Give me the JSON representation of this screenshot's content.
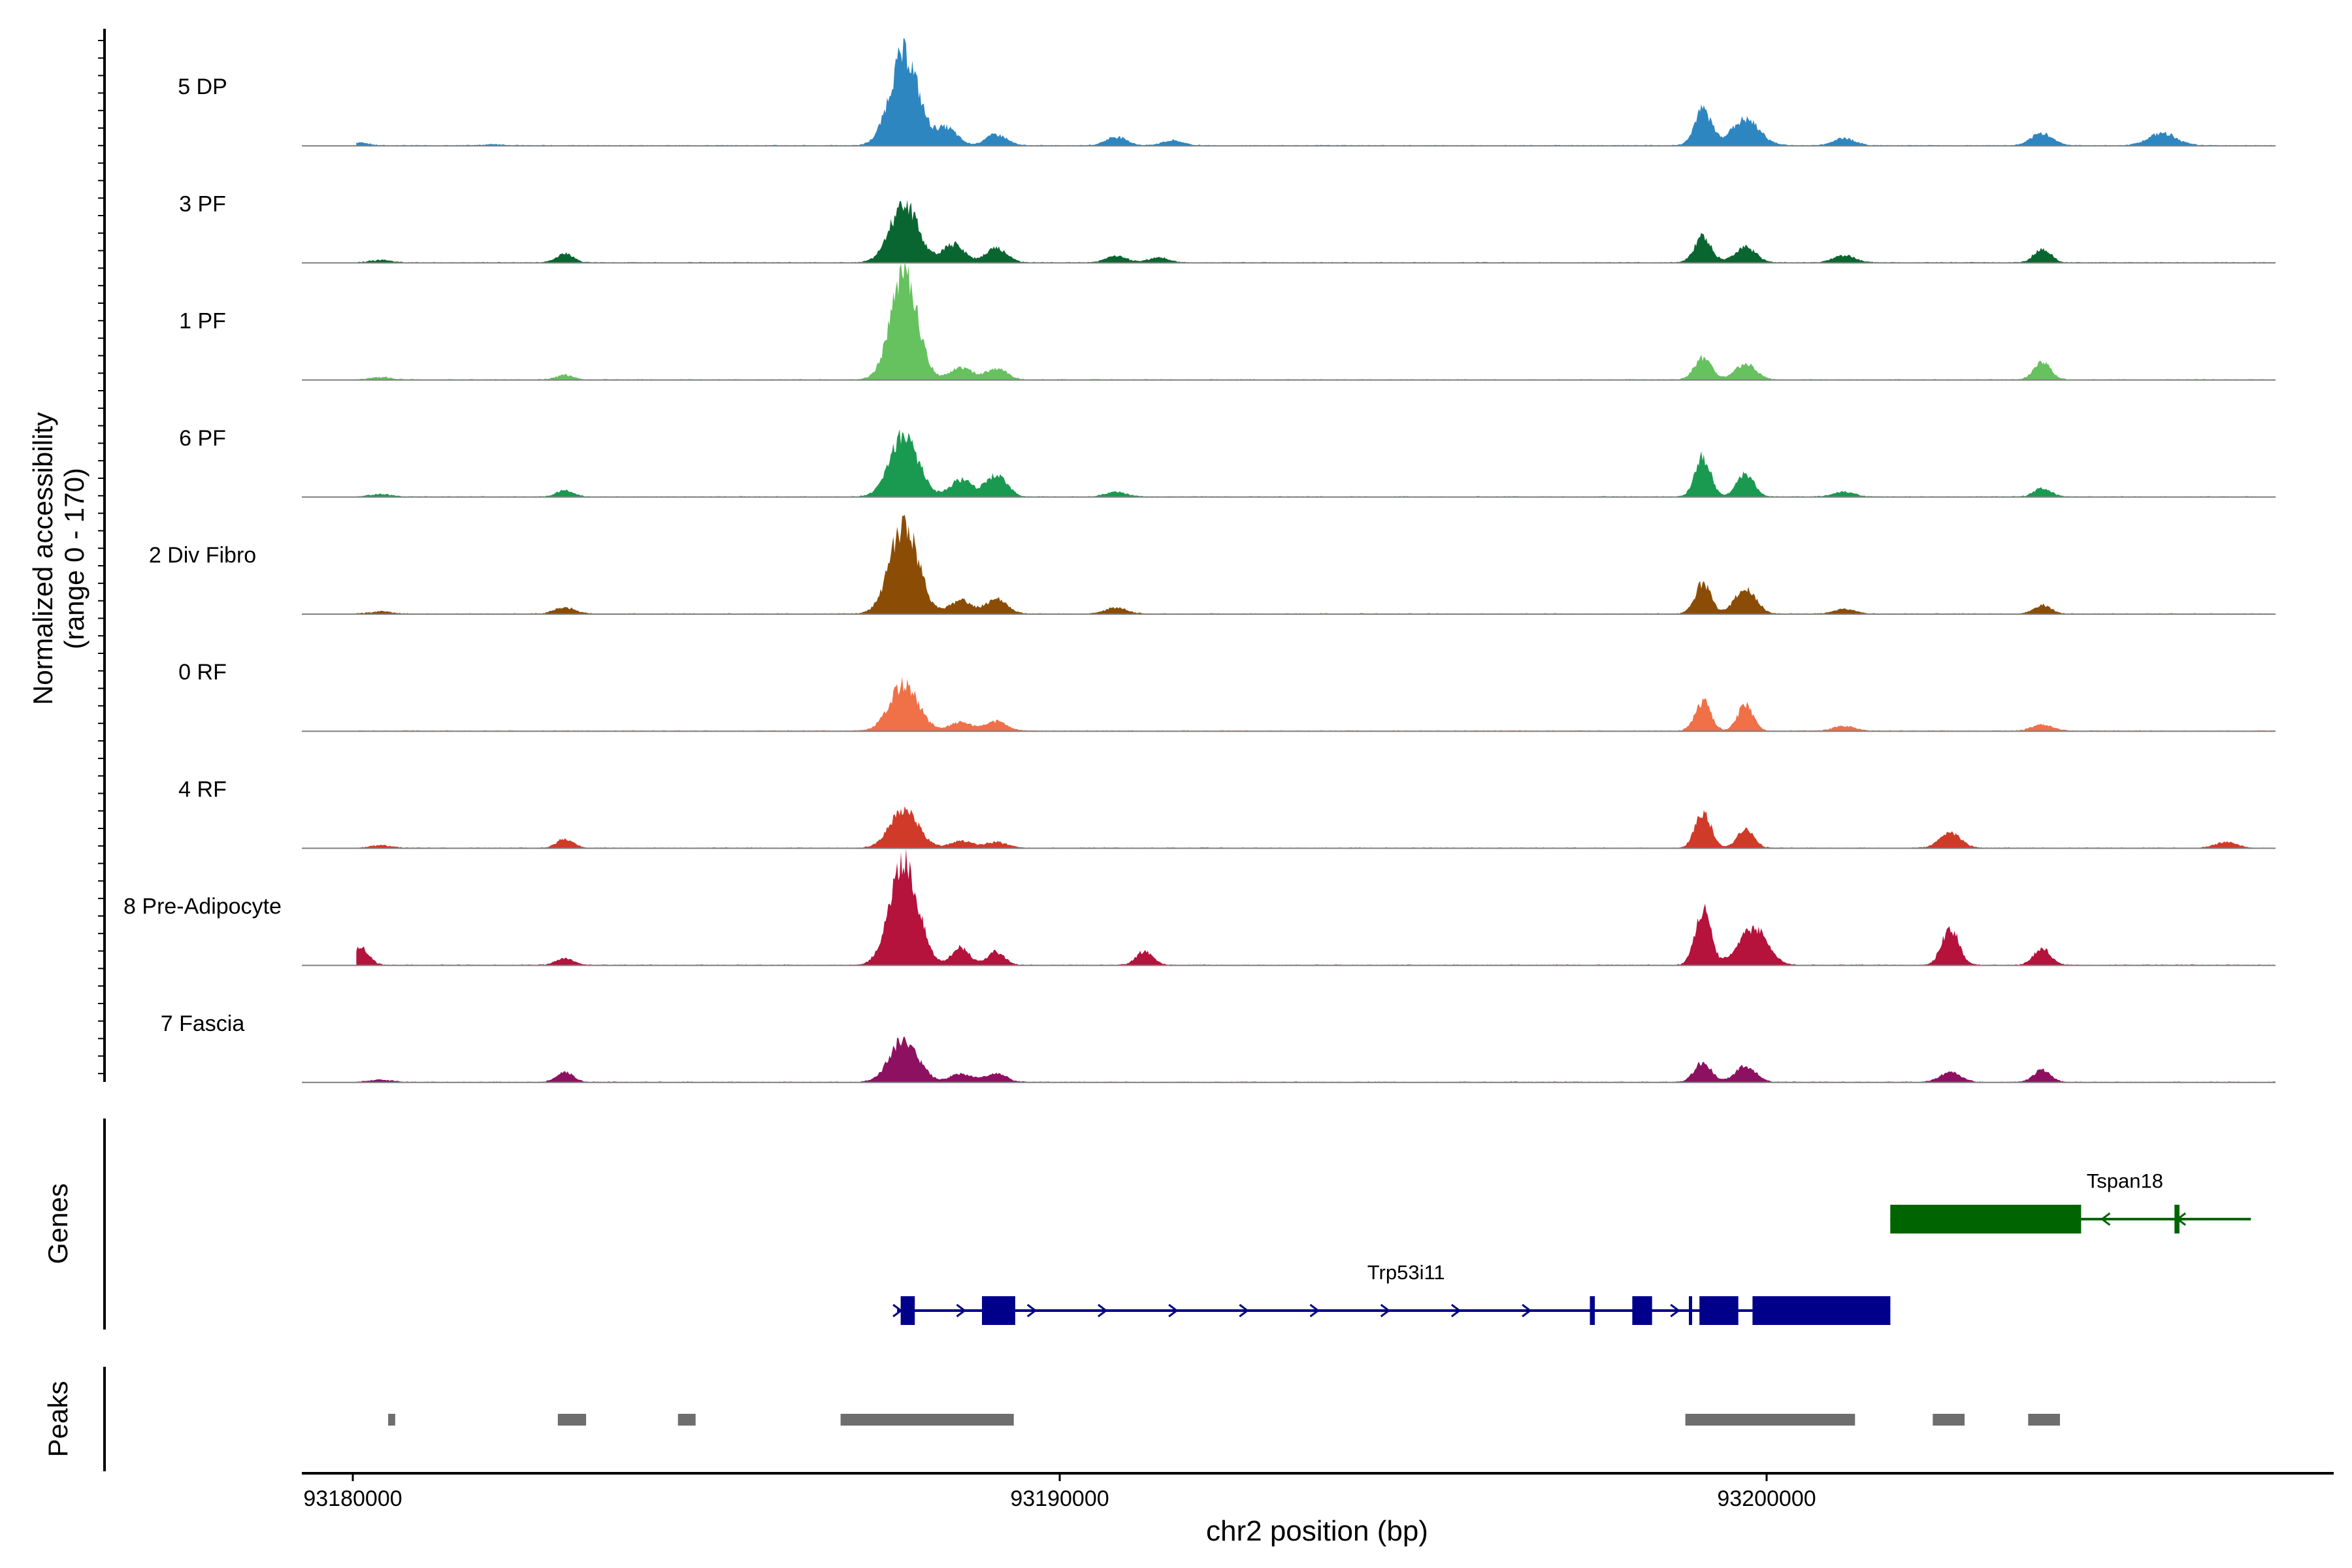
{
  "chart_data": {
    "type": "coverage",
    "ylabel": "Normalized accessibility",
    "ylabel_range": "(range 0 - 170)",
    "xlabel": "chr2 position (bp)",
    "xlim": [
      93178700,
      93208000
    ],
    "ylim": [
      0,
      170
    ],
    "x_ticks": [
      93180000,
      93190000,
      93200000
    ],
    "x_tick_labels": [
      "93180000",
      "93190000",
      "93200000"
    ],
    "tracks": [
      {
        "name": "5 DP",
        "color": "#2e86c1",
        "peaks": [
          [
            93180100,
            5,
            120
          ],
          [
            93182000,
            2,
            150
          ],
          [
            93187800,
            150,
            200
          ],
          [
            93188400,
            28,
            150
          ],
          [
            93189100,
            18,
            150
          ],
          [
            93190800,
            14,
            150
          ],
          [
            93191600,
            8,
            150
          ],
          [
            93199100,
            58,
            120
          ],
          [
            93199700,
            42,
            200
          ],
          [
            93201100,
            12,
            150
          ],
          [
            93203900,
            20,
            150
          ],
          [
            93205600,
            20,
            200
          ]
        ]
      },
      {
        "name": "3 PF",
        "color": "#0a6630",
        "peaks": [
          [
            93180400,
            4,
            150
          ],
          [
            93183000,
            14,
            120
          ],
          [
            93187800,
            95,
            200
          ],
          [
            93188500,
            30,
            150
          ],
          [
            93189100,
            24,
            150
          ],
          [
            93190800,
            10,
            150
          ],
          [
            93191400,
            8,
            150
          ],
          [
            93199100,
            42,
            120
          ],
          [
            93199700,
            25,
            150
          ],
          [
            93201100,
            12,
            150
          ],
          [
            93203900,
            22,
            120
          ]
        ]
      },
      {
        "name": "1 PF",
        "color": "#66c15f",
        "peaks": [
          [
            93180400,
            4,
            150
          ],
          [
            93183000,
            8,
            120
          ],
          [
            93187800,
            170,
            190
          ],
          [
            93188600,
            20,
            150
          ],
          [
            93189100,
            18,
            150
          ],
          [
            93199100,
            35,
            120
          ],
          [
            93199700,
            25,
            150
          ],
          [
            93203900,
            28,
            120
          ]
        ]
      },
      {
        "name": "6 PF",
        "color": "#1a9a50",
        "peaks": [
          [
            93180400,
            4,
            150
          ],
          [
            93183000,
            10,
            120
          ],
          [
            93187800,
            100,
            200
          ],
          [
            93188600,
            28,
            150
          ],
          [
            93189100,
            35,
            150
          ],
          [
            93190800,
            8,
            150
          ],
          [
            93199100,
            64,
            110
          ],
          [
            93199700,
            38,
            120
          ],
          [
            93201100,
            8,
            150
          ],
          [
            93203900,
            14,
            120
          ]
        ]
      },
      {
        "name": "2 Div Fibro",
        "color": "#8b4d06",
        "peaks": [
          [
            93180400,
            4,
            150
          ],
          [
            93183000,
            10,
            150
          ],
          [
            93187800,
            145,
            200
          ],
          [
            93188600,
            22,
            150
          ],
          [
            93189100,
            24,
            150
          ],
          [
            93190800,
            10,
            150
          ],
          [
            93199100,
            50,
            110
          ],
          [
            93199700,
            40,
            150
          ],
          [
            93201100,
            8,
            150
          ],
          [
            93203900,
            14,
            120
          ]
        ]
      },
      {
        "name": "0 RF",
        "color": "#f07048",
        "peaks": [
          [
            93187800,
            76,
            200
          ],
          [
            93188600,
            14,
            150
          ],
          [
            93189100,
            16,
            150
          ],
          [
            93199100,
            48,
            110
          ],
          [
            93199700,
            42,
            110
          ],
          [
            93201100,
            8,
            150
          ],
          [
            93203900,
            10,
            150
          ]
        ]
      },
      {
        "name": "4 RF",
        "color": "#d03a28",
        "peaks": [
          [
            93180400,
            4,
            150
          ],
          [
            93183000,
            14,
            120
          ],
          [
            93187800,
            62,
            200
          ],
          [
            93188600,
            12,
            150
          ],
          [
            93189100,
            10,
            150
          ],
          [
            93199100,
            60,
            110
          ],
          [
            93199700,
            30,
            120
          ],
          [
            93202600,
            24,
            150
          ],
          [
            93206500,
            10,
            150
          ]
        ]
      },
      {
        "name": "8 Pre-Adipocyte",
        "color": "#b5123c",
        "peaks": [
          [
            93180100,
            30,
            120
          ],
          [
            93183000,
            12,
            120
          ],
          [
            93187800,
            165,
            200
          ],
          [
            93188600,
            30,
            120
          ],
          [
            93189100,
            22,
            120
          ],
          [
            93191200,
            22,
            120
          ],
          [
            93199100,
            90,
            110
          ],
          [
            93199800,
            62,
            200
          ],
          [
            93202600,
            60,
            120
          ],
          [
            93203900,
            28,
            120
          ]
        ]
      },
      {
        "name": "7 Fascia",
        "color": "#8e1060",
        "peaks": [
          [
            93180400,
            4,
            150
          ],
          [
            93183000,
            16,
            120
          ],
          [
            93187800,
            70,
            200
          ],
          [
            93188600,
            14,
            150
          ],
          [
            93189100,
            14,
            150
          ],
          [
            93199100,
            32,
            120
          ],
          [
            93199700,
            26,
            150
          ],
          [
            93202600,
            16,
            150
          ],
          [
            93203900,
            20,
            120
          ]
        ]
      }
    ],
    "gene_track": {
      "label": "Genes",
      "genes": [
        {
          "name": "Tspan18",
          "strand": "-",
          "color": "#006400",
          "start": 93201750,
          "end": 93206850,
          "exons": [
            [
              93201750,
              93204450
            ],
            [
              93205770,
              93205840
            ]
          ],
          "chevrons": [
            93204800,
            93205870
          ]
        },
        {
          "name": "Trp53i11",
          "strand": "+",
          "color": "#00008b",
          "start": 93187700,
          "end": 93201750,
          "exons": [
            [
              93187750,
              93187950
            ],
            [
              93188900,
              93189370
            ],
            [
              93197500,
              93197570
            ],
            [
              93198100,
              93198380
            ],
            [
              93198900,
              93198940
            ],
            [
              93199050,
              93199600
            ],
            [
              93199800,
              93201750
            ]
          ],
          "chevrons": [
            93187700,
            93188600,
            93189600,
            93190600,
            93191600,
            93192600,
            93193600,
            93194600,
            93195600,
            93196600,
            93198700,
            93199200
          ]
        }
      ]
    },
    "peak_track": {
      "label": "Peaks",
      "color": "#6e6e6e",
      "regions": [
        [
          93180500,
          93180600
        ],
        [
          93182900,
          93183300
        ],
        [
          93184600,
          93184850
        ],
        [
          93186900,
          93189350
        ],
        [
          93198850,
          93201250
        ],
        [
          93202350,
          93202800
        ],
        [
          93203700,
          93204150
        ]
      ]
    }
  }
}
